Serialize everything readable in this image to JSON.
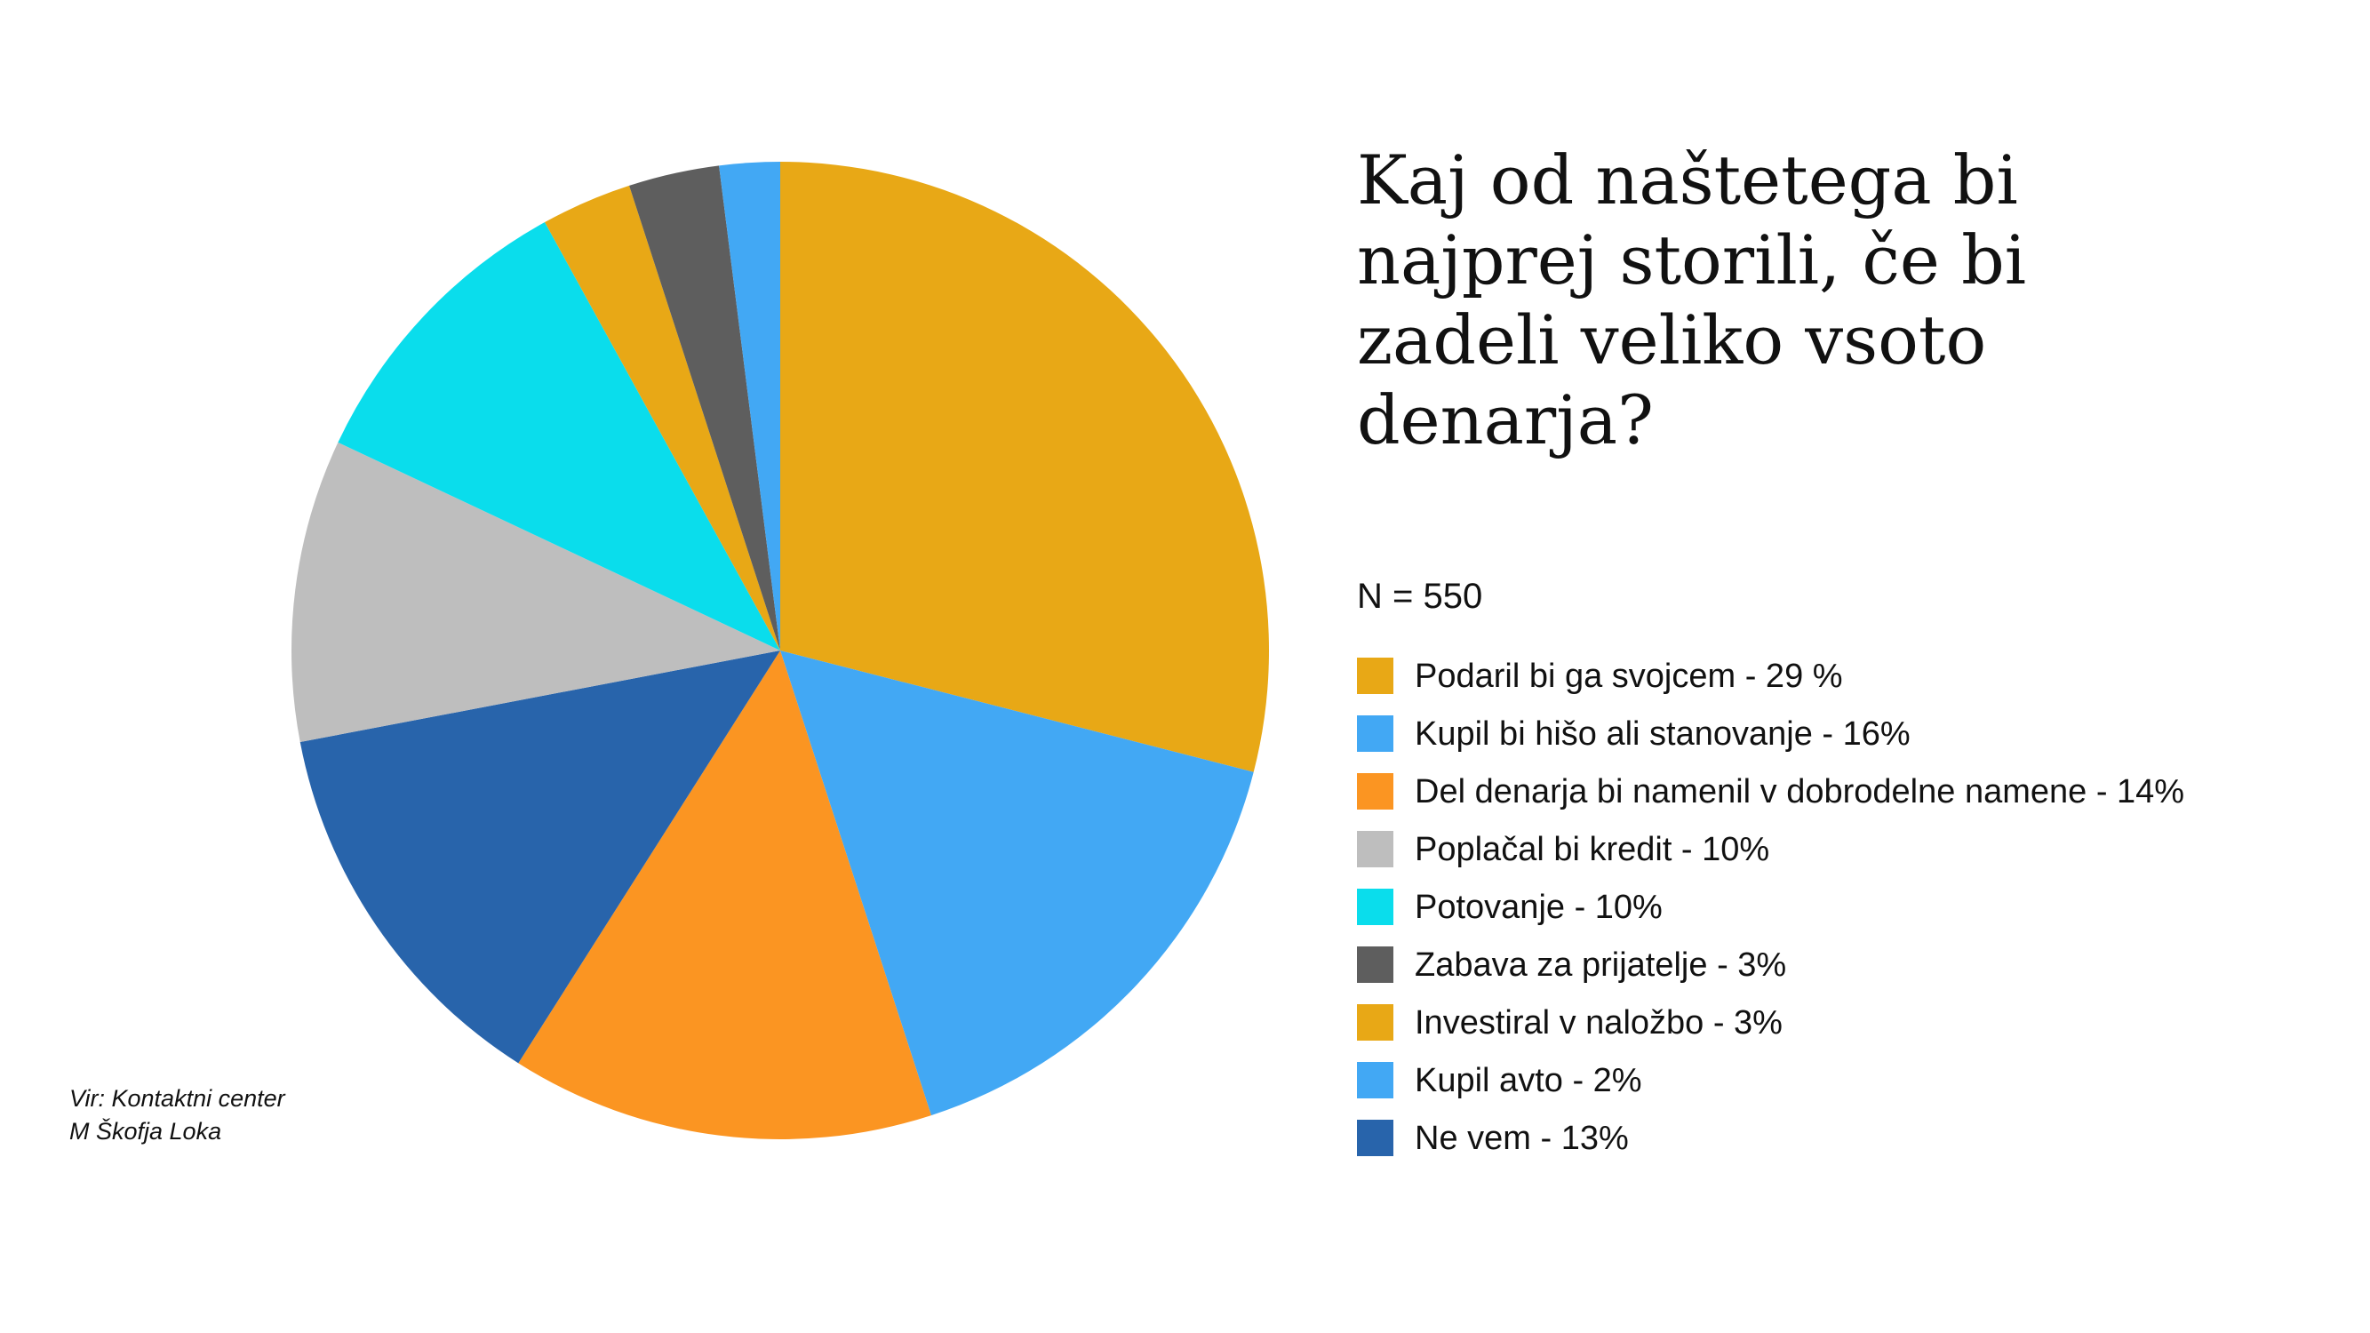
{
  "chart_data": {
    "type": "pie",
    "title": "Kaj od naštetega bi najprej storili, če bi zadeli veliko vsoto denarja?",
    "note": "N = 550",
    "legend_position": "right",
    "start_angle_deg": 0,
    "direction": "clockwise",
    "slices": [
      {
        "label": "Podaril bi ga svojcem - 29 %",
        "value": 29,
        "color": "#E8A816"
      },
      {
        "label": "Kupil bi hišo ali stanovanje - 16%",
        "value": 16,
        "color": "#42A8F4"
      },
      {
        "label": "Del denarja bi namenil v dobrodelne namene - 14%",
        "value": 14,
        "color": "#FB9522"
      },
      {
        "label": "Ne vem - 13%",
        "value": 13,
        "color": "#2864AB"
      },
      {
        "label": "Poplačal bi kredit - 10%",
        "value": 10,
        "color": "#BEBEBE"
      },
      {
        "label": "Potovanje - 10%",
        "value": 10,
        "color": "#0ADDEC"
      },
      {
        "label": "Investiral v naložbo - 3%",
        "value": 3,
        "color": "#E8A816"
      },
      {
        "label": "Zabava za prijatelje - 3%",
        "value": 3,
        "color": "#5E5E5E"
      },
      {
        "label": "Kupil avto - 2%",
        "value": 2,
        "color": "#42A8F4"
      }
    ],
    "legend": [
      {
        "label": "Podaril bi ga svojcem - 29 %",
        "color": "#E8A816"
      },
      {
        "label": "Kupil bi hišo ali stanovanje - 16%",
        "color": "#42A8F4"
      },
      {
        "label": "Del denarja bi namenil v dobrodelne namene - 14%",
        "color": "#FB9522"
      },
      {
        "label": "Poplačal bi kredit - 10%",
        "color": "#BEBEBE"
      },
      {
        "label": "Potovanje - 10%",
        "color": "#0ADDEC"
      },
      {
        "label": "Zabava za prijatelje - 3%",
        "color": "#5E5E5E"
      },
      {
        "label": "Investiral v naložbo - 3%",
        "color": "#E8A816"
      },
      {
        "label": "Kupil avto - 2%",
        "color": "#42A8F4"
      },
      {
        "label": "Ne vem - 13%",
        "color": "#2864AB"
      }
    ]
  },
  "source": {
    "line1": "Vir: Kontaktni center",
    "line2": "M Škofja Loka"
  }
}
